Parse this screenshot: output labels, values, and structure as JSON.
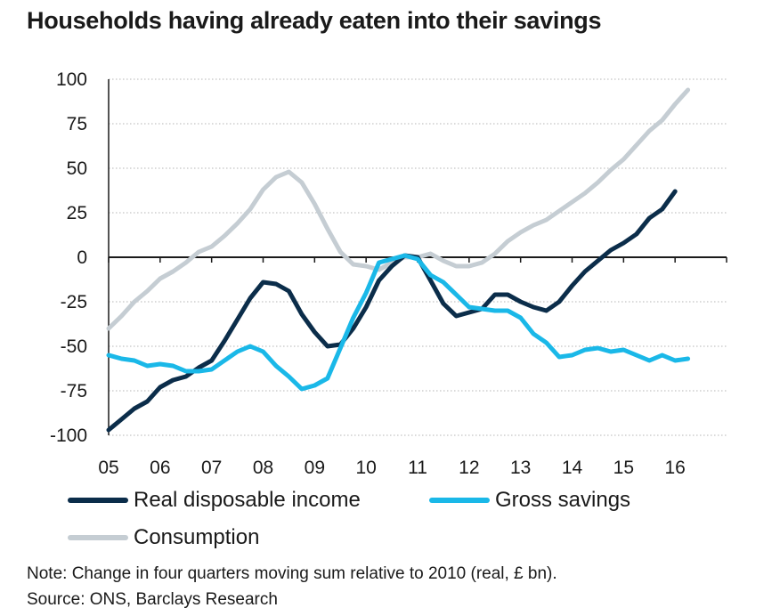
{
  "chart_data": {
    "type": "line",
    "title": "Households having already eaten into their savings",
    "xlabel": "",
    "ylabel": "",
    "x_tick_labels": [
      "05",
      "06",
      "07",
      "08",
      "09",
      "10",
      "11",
      "12",
      "13",
      "14",
      "15",
      "16"
    ],
    "y_ticks": [
      100,
      75,
      50,
      25,
      0,
      -25,
      -50,
      -75,
      -100
    ],
    "ylim": [
      -100,
      100
    ],
    "xlim": [
      2005.0,
      2017.0
    ],
    "grid": "horizontal dotted",
    "legend_position": "bottom",
    "series": [
      {
        "name": "Real disposable income",
        "color": "#0b2d4a",
        "points": [
          [
            2005.0,
            -97
          ],
          [
            2005.25,
            -91
          ],
          [
            2005.5,
            -85
          ],
          [
            2005.75,
            -81
          ],
          [
            2006.0,
            -73
          ],
          [
            2006.25,
            -69
          ],
          [
            2006.5,
            -67
          ],
          [
            2006.75,
            -62
          ],
          [
            2007.0,
            -58
          ],
          [
            2007.25,
            -47
          ],
          [
            2007.5,
            -35
          ],
          [
            2007.75,
            -23
          ],
          [
            2008.0,
            -14
          ],
          [
            2008.25,
            -15
          ],
          [
            2008.5,
            -19
          ],
          [
            2008.75,
            -32
          ],
          [
            2009.0,
            -42
          ],
          [
            2009.25,
            -50
          ],
          [
            2009.5,
            -49
          ],
          [
            2009.75,
            -40
          ],
          [
            2010.0,
            -28
          ],
          [
            2010.25,
            -13
          ],
          [
            2010.5,
            -5
          ],
          [
            2010.75,
            1
          ],
          [
            2011.0,
            0
          ],
          [
            2011.25,
            -13
          ],
          [
            2011.5,
            -26
          ],
          [
            2011.75,
            -33
          ],
          [
            2012.0,
            -31
          ],
          [
            2012.25,
            -29
          ],
          [
            2012.5,
            -21
          ],
          [
            2012.75,
            -21
          ],
          [
            2013.0,
            -25
          ],
          [
            2013.25,
            -28
          ],
          [
            2013.5,
            -30
          ],
          [
            2013.75,
            -25
          ],
          [
            2014.0,
            -16
          ],
          [
            2014.25,
            -8
          ],
          [
            2014.5,
            -2
          ],
          [
            2014.75,
            4
          ],
          [
            2015.0,
            8
          ],
          [
            2015.25,
            13
          ],
          [
            2015.5,
            22
          ],
          [
            2015.75,
            27
          ],
          [
            2016.0,
            37
          ]
        ]
      },
      {
        "name": "Gross savings",
        "color": "#1ab8e8",
        "points": [
          [
            2005.0,
            -55
          ],
          [
            2005.25,
            -57
          ],
          [
            2005.5,
            -58
          ],
          [
            2005.75,
            -61
          ],
          [
            2006.0,
            -60
          ],
          [
            2006.25,
            -61
          ],
          [
            2006.5,
            -64
          ],
          [
            2006.75,
            -64
          ],
          [
            2007.0,
            -63
          ],
          [
            2007.25,
            -58
          ],
          [
            2007.5,
            -53
          ],
          [
            2007.75,
            -50
          ],
          [
            2008.0,
            -53
          ],
          [
            2008.25,
            -61
          ],
          [
            2008.5,
            -67
          ],
          [
            2008.75,
            -74
          ],
          [
            2009.0,
            -72
          ],
          [
            2009.25,
            -68
          ],
          [
            2009.5,
            -51
          ],
          [
            2009.75,
            -34
          ],
          [
            2010.0,
            -20
          ],
          [
            2010.25,
            -3
          ],
          [
            2010.5,
            -1
          ],
          [
            2010.75,
            1
          ],
          [
            2011.0,
            -1
          ],
          [
            2011.25,
            -10
          ],
          [
            2011.5,
            -14
          ],
          [
            2011.75,
            -21
          ],
          [
            2012.0,
            -28
          ],
          [
            2012.25,
            -29
          ],
          [
            2012.5,
            -30
          ],
          [
            2012.75,
            -30
          ],
          [
            2013.0,
            -34
          ],
          [
            2013.25,
            -43
          ],
          [
            2013.5,
            -48
          ],
          [
            2013.75,
            -56
          ],
          [
            2014.0,
            -55
          ],
          [
            2014.25,
            -52
          ],
          [
            2014.5,
            -51
          ],
          [
            2014.75,
            -53
          ],
          [
            2015.0,
            -52
          ],
          [
            2015.25,
            -55
          ],
          [
            2015.5,
            -58
          ],
          [
            2015.75,
            -55
          ],
          [
            2016.0,
            -58
          ],
          [
            2016.25,
            -57
          ]
        ]
      },
      {
        "name": "Consumption",
        "color": "#c5cdd3",
        "points": [
          [
            2005.0,
            -40
          ],
          [
            2005.25,
            -33
          ],
          [
            2005.5,
            -25
          ],
          [
            2005.75,
            -19
          ],
          [
            2006.0,
            -12
          ],
          [
            2006.25,
            -8
          ],
          [
            2006.5,
            -3
          ],
          [
            2006.75,
            3
          ],
          [
            2007.0,
            6
          ],
          [
            2007.25,
            12
          ],
          [
            2007.5,
            19
          ],
          [
            2007.75,
            27
          ],
          [
            2008.0,
            38
          ],
          [
            2008.25,
            45
          ],
          [
            2008.5,
            48
          ],
          [
            2008.75,
            42
          ],
          [
            2009.0,
            30
          ],
          [
            2009.25,
            16
          ],
          [
            2009.5,
            3
          ],
          [
            2009.75,
            -4
          ],
          [
            2010.0,
            -5
          ],
          [
            2010.25,
            -7
          ],
          [
            2010.5,
            -3
          ],
          [
            2010.75,
            0
          ],
          [
            2011.0,
            0
          ],
          [
            2011.25,
            2
          ],
          [
            2011.5,
            -2
          ],
          [
            2011.75,
            -5
          ],
          [
            2012.0,
            -5
          ],
          [
            2012.25,
            -3
          ],
          [
            2012.5,
            2
          ],
          [
            2012.75,
            9
          ],
          [
            2013.0,
            14
          ],
          [
            2013.25,
            18
          ],
          [
            2013.5,
            21
          ],
          [
            2013.75,
            26
          ],
          [
            2014.0,
            31
          ],
          [
            2014.25,
            36
          ],
          [
            2014.5,
            42
          ],
          [
            2014.75,
            49
          ],
          [
            2015.0,
            55
          ],
          [
            2015.25,
            63
          ],
          [
            2015.5,
            71
          ],
          [
            2015.75,
            77
          ],
          [
            2016.0,
            86
          ],
          [
            2016.25,
            94
          ]
        ]
      }
    ]
  },
  "notes": {
    "note": "Note: Change in four quarters moving sum relative to 2010 (real, £ bn).",
    "source": "Source: ONS, Barclays Research"
  }
}
